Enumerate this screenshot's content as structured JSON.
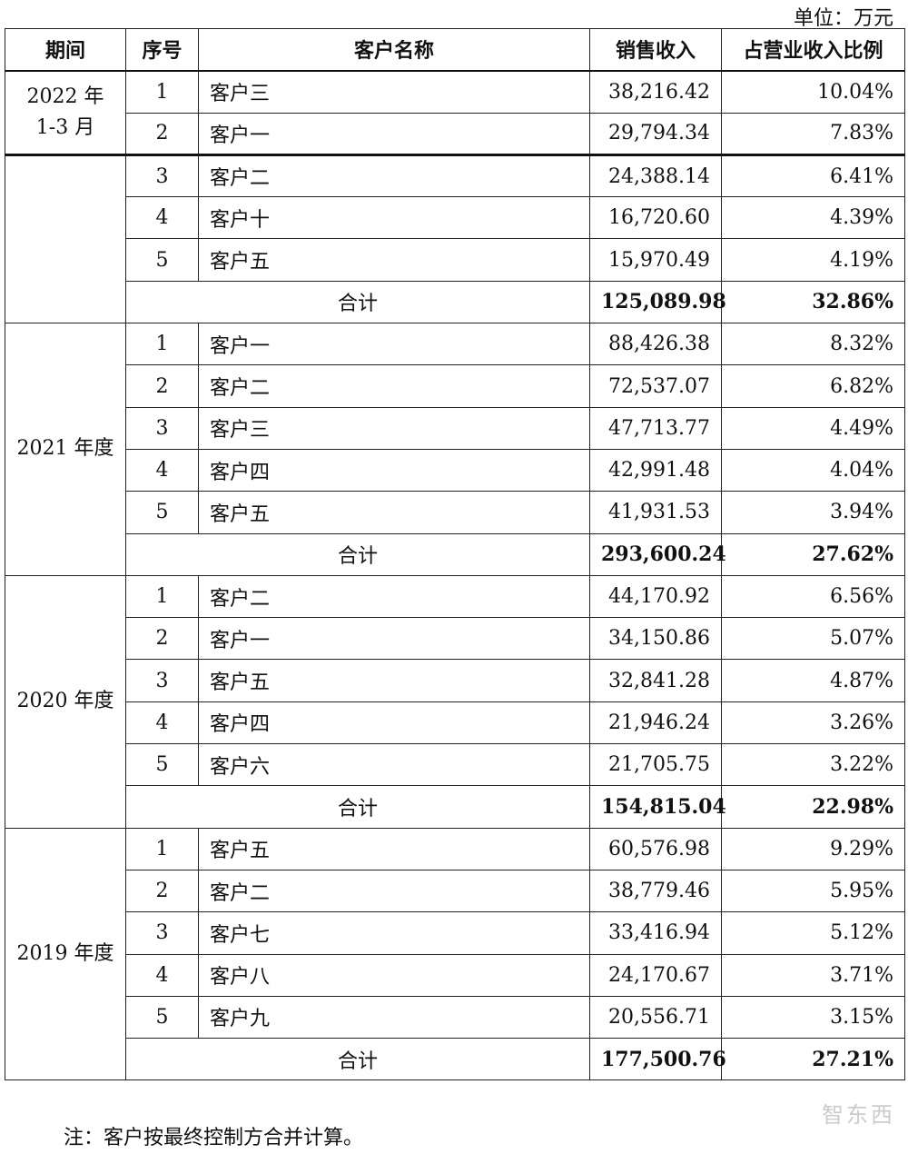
{
  "unit_label": "单位：万元",
  "headers": {
    "period": "期间",
    "seq": "序号",
    "name": "客户名称",
    "sales": "销售收入",
    "ratio": "占营业收入比例"
  },
  "groups": [
    {
      "period_line1": "2022 年",
      "period_line2": "1-3 月",
      "rows": [
        {
          "seq": "1",
          "name": "客户三",
          "sales": "38,216.42",
          "ratio": "10.04%"
        },
        {
          "seq": "2",
          "name": "客户一",
          "sales": "29,794.34",
          "ratio": "7.83%"
        },
        {
          "seq": "3",
          "name": "客户二",
          "sales": "24,388.14",
          "ratio": "6.41%"
        },
        {
          "seq": "4",
          "name": "客户十",
          "sales": "16,720.60",
          "ratio": "4.39%"
        },
        {
          "seq": "5",
          "name": "客户五",
          "sales": "15,970.49",
          "ratio": "4.19%"
        }
      ],
      "total": {
        "label": "合计",
        "sales": "125,089.98",
        "ratio": "32.86%"
      }
    },
    {
      "period_line1": "2021 年度",
      "rows": [
        {
          "seq": "1",
          "name": "客户一",
          "sales": "88,426.38",
          "ratio": "8.32%"
        },
        {
          "seq": "2",
          "name": "客户二",
          "sales": "72,537.07",
          "ratio": "6.82%"
        },
        {
          "seq": "3",
          "name": "客户三",
          "sales": "47,713.77",
          "ratio": "4.49%"
        },
        {
          "seq": "4",
          "name": "客户四",
          "sales": "42,991.48",
          "ratio": "4.04%"
        },
        {
          "seq": "5",
          "name": "客户五",
          "sales": "41,931.53",
          "ratio": "3.94%"
        }
      ],
      "total": {
        "label": "合计",
        "sales": "293,600.24",
        "ratio": "27.62%"
      }
    },
    {
      "period_line1": "2020 年度",
      "rows": [
        {
          "seq": "1",
          "name": "客户二",
          "sales": "44,170.92",
          "ratio": "6.56%"
        },
        {
          "seq": "2",
          "name": "客户一",
          "sales": "34,150.86",
          "ratio": "5.07%"
        },
        {
          "seq": "3",
          "name": "客户五",
          "sales": "32,841.28",
          "ratio": "4.87%"
        },
        {
          "seq": "4",
          "name": "客户四",
          "sales": "21,946.24",
          "ratio": "3.26%"
        },
        {
          "seq": "5",
          "name": "客户六",
          "sales": "21,705.75",
          "ratio": "3.22%"
        }
      ],
      "total": {
        "label": "合计",
        "sales": "154,815.04",
        "ratio": "22.98%"
      }
    },
    {
      "period_line1": "2019 年度",
      "rows": [
        {
          "seq": "1",
          "name": "客户五",
          "sales": "60,576.98",
          "ratio": "9.29%"
        },
        {
          "seq": "2",
          "name": "客户二",
          "sales": "38,779.46",
          "ratio": "5.95%"
        },
        {
          "seq": "3",
          "name": "客户七",
          "sales": "33,416.94",
          "ratio": "5.12%"
        },
        {
          "seq": "4",
          "name": "客户八",
          "sales": "24,170.67",
          "ratio": "3.71%"
        },
        {
          "seq": "5",
          "name": "客户九",
          "sales": "20,556.71",
          "ratio": "3.15%"
        }
      ],
      "total": {
        "label": "合计",
        "sales": "177,500.76",
        "ratio": "27.21%"
      }
    }
  ],
  "note": "注：客户按最终控制方合并计算。",
  "watermark": "智东西"
}
